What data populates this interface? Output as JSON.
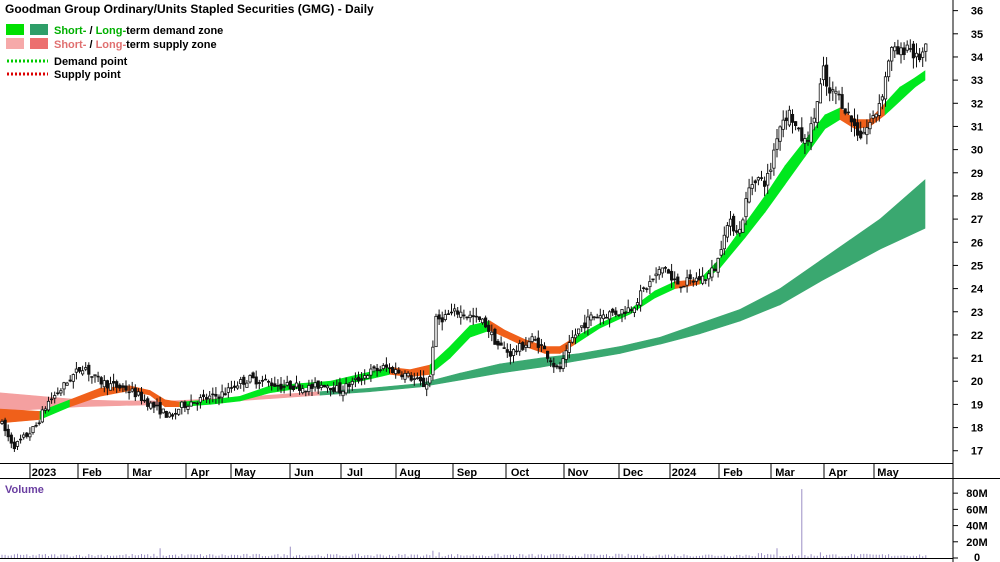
{
  "chart_data": {
    "type": "candlestick",
    "title": "Goodman Group Ordinary/Units Stapled Securities (GMG) - Daily",
    "legend": [
      {
        "short": "Short-",
        "sep": " / ",
        "long": "Long-",
        "rest": "term demand zone",
        "short_color": "#00e000",
        "long_color": "#2e9e68",
        "text_color": "#00b000"
      },
      {
        "short": "Short-",
        "sep": " / ",
        "long": "Long-",
        "rest": "term supply zone",
        "short_color": "#f6a9a9",
        "long_color": "#ec6f6f",
        "text_color": "#e07070"
      },
      {
        "label": "Demand point",
        "color": "#00cc00"
      },
      {
        "label": "Supply point",
        "color": "#dd0000"
      }
    ],
    "legend_placement": "top-left",
    "x_labels": [
      "2023",
      "Feb",
      "Mar",
      "Apr",
      "May",
      "Jun",
      "Jul",
      "Aug",
      "Sep",
      "Oct",
      "Nov",
      "Dec",
      "2024",
      "Feb",
      "Mar",
      "Apr",
      "May"
    ],
    "y_ticks": [
      17,
      18,
      19,
      20,
      21,
      22,
      23,
      24,
      25,
      26,
      27,
      28,
      29,
      30,
      31,
      32,
      33,
      34,
      35,
      36
    ],
    "ylim": [
      16.6,
      36.2
    ],
    "price_path": [
      [
        0,
        18.3
      ],
      [
        8,
        17.6
      ],
      [
        15,
        17.2
      ],
      [
        25,
        17.6
      ],
      [
        35,
        18.0
      ],
      [
        48,
        19.1
      ],
      [
        60,
        19.6
      ],
      [
        72,
        20.2
      ],
      [
        84,
        20.7
      ],
      [
        92,
        20.2
      ],
      [
        100,
        20.0
      ],
      [
        112,
        19.8
      ],
      [
        125,
        19.7
      ],
      [
        138,
        19.4
      ],
      [
        150,
        19.0
      ],
      [
        162,
        18.7
      ],
      [
        172,
        18.4
      ],
      [
        180,
        18.9
      ],
      [
        190,
        19.1
      ],
      [
        200,
        19.2
      ],
      [
        212,
        19.3
      ],
      [
        225,
        19.5
      ],
      [
        237,
        19.9
      ],
      [
        250,
        20.1
      ],
      [
        265,
        20.0
      ],
      [
        280,
        19.8
      ],
      [
        295,
        19.8
      ],
      [
        310,
        19.7
      ],
      [
        325,
        19.9
      ],
      [
        340,
        19.6
      ],
      [
        355,
        20.0
      ],
      [
        370,
        20.4
      ],
      [
        385,
        20.6
      ],
      [
        400,
        20.4
      ],
      [
        418,
        20.0
      ],
      [
        425,
        19.8
      ],
      [
        430,
        20.2
      ],
      [
        435,
        22.6
      ],
      [
        445,
        22.8
      ],
      [
        458,
        23.0
      ],
      [
        470,
        22.8
      ],
      [
        485,
        22.5
      ],
      [
        497,
        21.6
      ],
      [
        510,
        21.2
      ],
      [
        522,
        21.5
      ],
      [
        532,
        21.8
      ],
      [
        540,
        21.6
      ],
      [
        550,
        21.0
      ],
      [
        558,
        20.4
      ],
      [
        565,
        21.0
      ],
      [
        572,
        21.8
      ],
      [
        580,
        22.3
      ],
      [
        592,
        22.8
      ],
      [
        605,
        22.9
      ],
      [
        620,
        23.0
      ],
      [
        632,
        23.2
      ],
      [
        645,
        24.0
      ],
      [
        655,
        24.5
      ],
      [
        665,
        25.0
      ],
      [
        672,
        24.3
      ],
      [
        683,
        24.2
      ],
      [
        695,
        24.4
      ],
      [
        707,
        24.5
      ],
      [
        717,
        25.0
      ],
      [
        724,
        26.5
      ],
      [
        730,
        26.8
      ],
      [
        740,
        26.5
      ],
      [
        748,
        28.2
      ],
      [
        755,
        28.8
      ],
      [
        765,
        28.6
      ],
      [
        770,
        29.0
      ],
      [
        776,
        30.5
      ],
      [
        782,
        31.3
      ],
      [
        790,
        31.6
      ],
      [
        798,
        30.7
      ],
      [
        805,
        30.3
      ],
      [
        812,
        31.0
      ],
      [
        818,
        32.2
      ],
      [
        824,
        33.5
      ],
      [
        828,
        32.3
      ],
      [
        836,
        32.5
      ],
      [
        845,
        31.8
      ],
      [
        852,
        31.2
      ],
      [
        860,
        30.6
      ],
      [
        868,
        31.0
      ],
      [
        876,
        31.6
      ],
      [
        884,
        32.7
      ],
      [
        890,
        34.3
      ],
      [
        900,
        34.1
      ],
      [
        908,
        34.6
      ],
      [
        916,
        33.9
      ],
      [
        922,
        34.1
      ],
      [
        926,
        34.3
      ]
    ],
    "short_term_zone": [
      [
        0,
        18.2,
        18.8
      ],
      [
        40,
        18.35,
        18.7
      ],
      [
        70,
        18.9,
        19.2
      ],
      [
        100,
        19.35,
        19.7
      ],
      [
        130,
        19.6,
        19.8
      ],
      [
        150,
        19.4,
        19.6
      ],
      [
        165,
        18.9,
        19.2
      ],
      [
        180,
        18.9,
        19.1
      ],
      [
        210,
        19.0,
        19.2
      ],
      [
        240,
        19.15,
        19.35
      ],
      [
        270,
        19.5,
        19.8
      ],
      [
        300,
        19.7,
        19.9
      ],
      [
        330,
        19.8,
        20.0
      ],
      [
        360,
        20.0,
        20.3
      ],
      [
        390,
        20.3,
        20.6
      ],
      [
        410,
        20.2,
        20.5
      ],
      [
        430,
        20.3,
        20.7
      ],
      [
        450,
        21.0,
        21.5
      ],
      [
        470,
        21.9,
        22.4
      ],
      [
        490,
        22.2,
        22.6
      ],
      [
        505,
        21.9,
        22.2
      ],
      [
        525,
        21.5,
        21.8
      ],
      [
        545,
        21.2,
        21.5
      ],
      [
        560,
        21.2,
        21.5
      ],
      [
        575,
        21.6,
        21.9
      ],
      [
        600,
        22.3,
        22.5
      ],
      [
        630,
        22.9,
        23.1
      ],
      [
        655,
        23.6,
        23.9
      ],
      [
        675,
        24.0,
        24.3
      ],
      [
        700,
        24.2,
        24.4
      ],
      [
        720,
        24.9,
        25.3
      ],
      [
        745,
        26.2,
        26.8
      ],
      [
        765,
        27.3,
        28.0
      ],
      [
        785,
        28.5,
        29.3
      ],
      [
        805,
        29.7,
        30.4
      ],
      [
        825,
        30.9,
        31.5
      ],
      [
        840,
        31.3,
        31.8
      ],
      [
        855,
        30.9,
        31.3
      ],
      [
        870,
        31.0,
        31.3
      ],
      [
        885,
        31.5,
        32.0
      ],
      [
        900,
        32.1,
        32.7
      ],
      [
        915,
        32.7,
        33.1
      ],
      [
        925,
        33.0,
        33.4
      ]
    ],
    "short_term_zone_state": [
      "supply",
      "demand",
      "supply",
      "supply",
      "supply",
      "supply",
      "supply",
      "demand",
      "demand",
      "demand",
      "demand",
      "demand",
      "demand",
      "demand",
      "supply",
      "supply",
      "demand",
      "demand",
      "demand",
      "supply",
      "supply",
      "supply",
      "supply",
      "supply",
      "demand",
      "demand",
      "demand",
      "demand",
      "supply",
      "demand",
      "demand",
      "demand",
      "demand",
      "demand",
      "demand",
      "demand",
      "supply",
      "supply",
      "supply",
      "demand",
      "demand",
      "demand"
    ],
    "long_term_zone": [
      [
        0,
        18.7,
        19.5
      ],
      [
        40,
        18.8,
        19.35
      ],
      [
        80,
        18.9,
        19.2
      ],
      [
        120,
        18.95,
        19.15
      ],
      [
        170,
        19.0,
        19.15
      ],
      [
        220,
        19.1,
        19.25
      ],
      [
        270,
        19.25,
        19.4
      ],
      [
        320,
        19.4,
        19.55
      ],
      [
        370,
        19.55,
        19.7
      ],
      [
        420,
        19.75,
        19.9
      ],
      [
        460,
        20.05,
        20.35
      ],
      [
        500,
        20.35,
        20.75
      ],
      [
        540,
        20.6,
        21.0
      ],
      [
        580,
        20.9,
        21.2
      ],
      [
        620,
        21.2,
        21.5
      ],
      [
        660,
        21.6,
        21.9
      ],
      [
        700,
        22.05,
        22.5
      ],
      [
        740,
        22.6,
        23.1
      ],
      [
        780,
        23.3,
        24.0
      ],
      [
        820,
        24.3,
        25.2
      ],
      [
        850,
        25.0,
        26.1
      ],
      [
        880,
        25.7,
        27.0
      ],
      [
        925,
        26.6,
        28.7
      ]
    ],
    "long_term_zone_state": [
      "supply",
      "supply",
      "supply",
      "supply",
      "supply",
      "supply",
      "supply",
      "demand",
      "demand",
      "demand",
      "demand",
      "demand",
      "demand",
      "demand",
      "demand",
      "demand",
      "demand",
      "demand",
      "demand",
      "demand",
      "demand",
      "demand"
    ],
    "volume_panel": {
      "label": "Volume",
      "y_ticks": [
        "0",
        "20M",
        "40M",
        "60M",
        "80M"
      ],
      "ylim": [
        0,
        95
      ],
      "typical_volume_M": 3.5,
      "spikes": [
        [
          160,
          12
        ],
        [
          290,
          14
        ],
        [
          432,
          9
        ],
        [
          440,
          7
        ],
        [
          760,
          6
        ],
        [
          776,
          12
        ],
        [
          803,
          85
        ],
        [
          820,
          7
        ]
      ]
    }
  },
  "colors": {
    "demand_short": "#00e81e",
    "demand_long": "#3aa870",
    "supply_short": "#f2a3a3",
    "supply_long": "#f0601a",
    "supply_long_band": "#f4a0a0",
    "candle": "#111111",
    "volume": "#9b8fc4",
    "axis": "#000000"
  }
}
